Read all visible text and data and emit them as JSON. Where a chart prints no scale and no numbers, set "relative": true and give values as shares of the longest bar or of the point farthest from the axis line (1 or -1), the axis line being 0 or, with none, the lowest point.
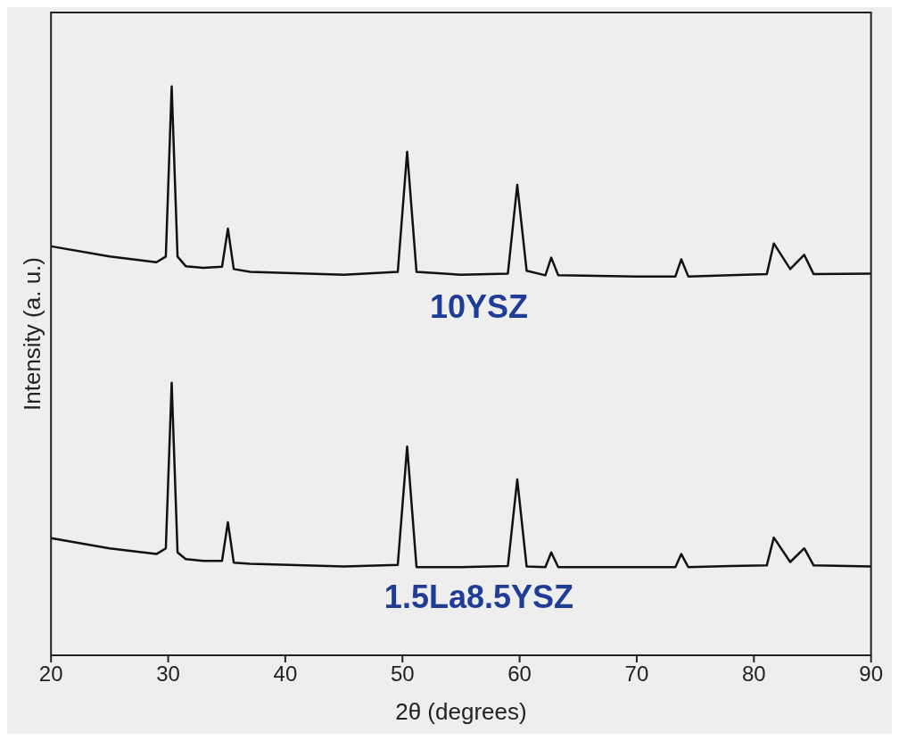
{
  "chart_data": {
    "type": "line",
    "relative": true,
    "xlabel": "2θ (degrees)",
    "ylabel": "Intensity (a. u.)",
    "xlim": [
      20,
      90
    ],
    "xticks": [
      20,
      30,
      40,
      50,
      60,
      70,
      80,
      90
    ],
    "grid": false,
    "legend": false,
    "marker": "none",
    "line_style": "solid",
    "x": [
      20,
      25,
      29,
      29.8,
      30.3,
      30.8,
      31.5,
      33,
      34.6,
      35.1,
      35.6,
      37,
      45,
      49.6,
      50.4,
      51.2,
      55,
      59,
      59.8,
      60.6,
      62.2,
      62.7,
      63.3,
      70,
      73.3,
      73.8,
      74.4,
      78,
      81.1,
      81.7,
      83.1,
      84.3,
      85.1,
      90
    ],
    "series": [
      {
        "name": "10YSZ",
        "color": "#111111",
        "values": [
          0.719,
          0.701,
          0.691,
          0.701,
          1.0,
          0.701,
          0.684,
          0.681,
          0.683,
          0.75,
          0.679,
          0.674,
          0.669,
          0.674,
          0.885,
          0.674,
          0.669,
          0.671,
          0.827,
          0.676,
          0.668,
          0.699,
          0.668,
          0.666,
          0.666,
          0.696,
          0.666,
          0.668,
          0.67,
          0.724,
          0.679,
          0.704,
          0.67,
          0.671
        ]
      },
      {
        "name": "1.5La8.5YSZ",
        "color": "#111111",
        "values": [
          0.206,
          0.188,
          0.178,
          0.188,
          0.479,
          0.181,
          0.169,
          0.166,
          0.166,
          0.234,
          0.163,
          0.161,
          0.156,
          0.159,
          0.367,
          0.155,
          0.155,
          0.157,
          0.309,
          0.156,
          0.155,
          0.181,
          0.155,
          0.155,
          0.155,
          0.178,
          0.155,
          0.157,
          0.158,
          0.207,
          0.164,
          0.188,
          0.158,
          0.156
        ]
      }
    ]
  }
}
